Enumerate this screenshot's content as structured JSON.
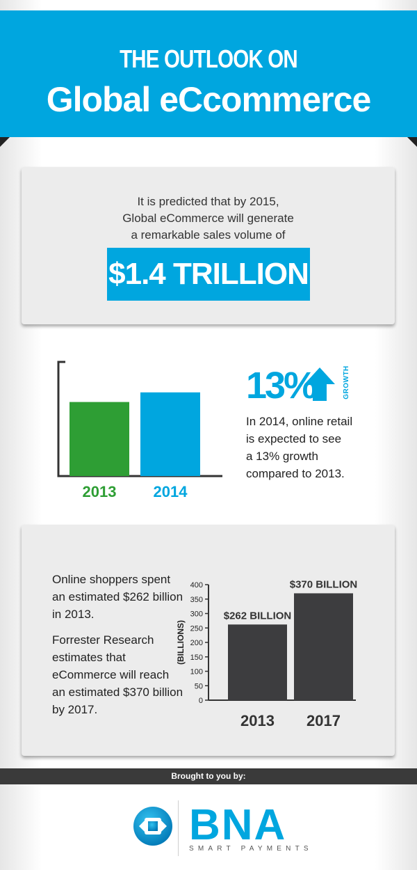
{
  "header": {
    "kicker": "THE OUTLOOK ON",
    "title": "Global eCcommerce"
  },
  "intro": {
    "line1": "It is predicted that by 2015,",
    "line2": "Global eCommerce will generate",
    "line3": "a remarkable sales volume of",
    "highlight": "$1.4 TRILLION"
  },
  "growth": {
    "percent": "13%",
    "label": "GROWTH",
    "line1": "In 2014, online retail",
    "line2": "is expected to see",
    "line3": "a 13% growth",
    "line4": "compared to 2013."
  },
  "spending": {
    "para1": "Online shoppers spent an estimated $262 billion in 2013.",
    "para2": "Forrester Research estimates that eCommerce will reach an estimated $370 billion by 2017."
  },
  "footer": {
    "brought_by": "Brought to you by:",
    "logo_name": "BNA",
    "logo_tagline": "SMART PAYMENTS"
  },
  "colors": {
    "accent_blue": "#00a6df",
    "green": "#2e9e34",
    "dark": "#3d3d3f",
    "panel": "#ececec"
  },
  "chart_data": [
    {
      "type": "bar",
      "categories": [
        "2013",
        "2014"
      ],
      "values": [
        100,
        113
      ],
      "colors": [
        "#2e9e34",
        "#00a6df"
      ],
      "ylim": [
        0,
        156
      ],
      "title": "",
      "xlabel": "",
      "ylabel": ""
    },
    {
      "type": "bar",
      "categories": [
        "2013",
        "2017"
      ],
      "values": [
        262,
        370
      ],
      "data_labels": [
        "$262 BILLION",
        "$370 BILLION"
      ],
      "yticks": [
        0,
        50,
        100,
        150,
        200,
        250,
        300,
        350,
        400
      ],
      "ylim": [
        0,
        400
      ],
      "ylabel": "(BILLIONS)",
      "xlabel": "",
      "title": ""
    }
  ]
}
